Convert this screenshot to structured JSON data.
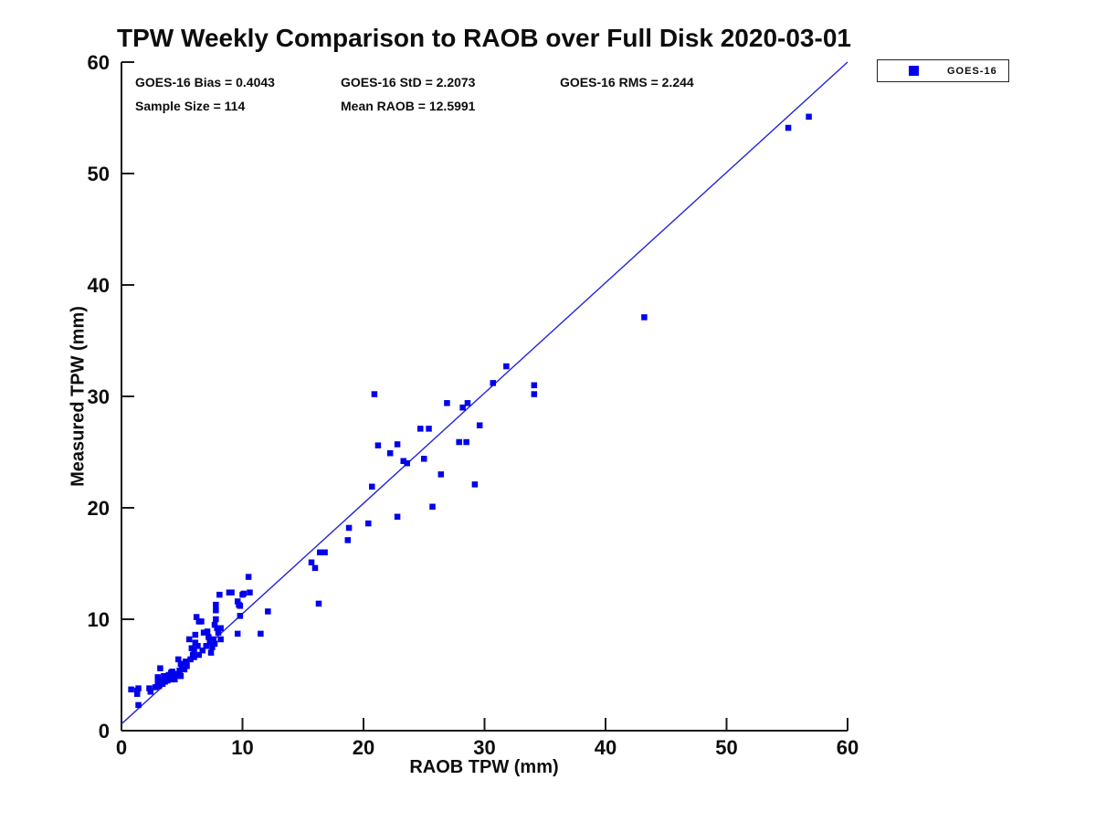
{
  "chart_data": {
    "type": "scatter",
    "title": "TPW Weekly Comparison to RAOB over Full Disk 2020-03-01",
    "xlabel": "RAOB TPW (mm)",
    "ylabel": "Measured TPW (mm)",
    "xlim": [
      0,
      60
    ],
    "ylim": [
      0,
      60
    ],
    "xticks": [
      0,
      10,
      20,
      30,
      40,
      50,
      60
    ],
    "yticks": [
      0,
      10,
      20,
      30,
      40,
      50,
      60
    ],
    "grid": false,
    "legend_position": "top-right-outside",
    "stats": {
      "bias": "GOES-16 Bias = 0.4043",
      "std": "GOES-16 StD = 2.2073",
      "rms": "GOES-16 RMS = 2.244",
      "sample": "Sample Size = 114",
      "mean": "Mean RAOB = 12.5991"
    },
    "fit_line": {
      "x1": 0,
      "y1": 0.6,
      "x2": 60,
      "y2": 60,
      "color": "#2424d9"
    },
    "series": [
      {
        "name": "GOES-16",
        "marker": "square",
        "color": "#0000ec",
        "points": [
          [
            0.8,
            3.7
          ],
          [
            1.3,
            3.6
          ],
          [
            1.4,
            3.8
          ],
          [
            1.3,
            3.3
          ],
          [
            1.4,
            2.3
          ],
          [
            2.3,
            3.8
          ],
          [
            2.4,
            3.5
          ],
          [
            2.8,
            3.9
          ],
          [
            3.0,
            4.3
          ],
          [
            3.0,
            4.8
          ],
          [
            3.1,
            4.0
          ],
          [
            3.2,
            5.6
          ],
          [
            3.3,
            4.4
          ],
          [
            3.4,
            4.2
          ],
          [
            3.5,
            4.9
          ],
          [
            3.6,
            4.4
          ],
          [
            3.7,
            4.7
          ],
          [
            3.8,
            4.5
          ],
          [
            3.9,
            5.0
          ],
          [
            4.0,
            4.6
          ],
          [
            4.1,
            5.2
          ],
          [
            4.2,
            5.3
          ],
          [
            4.3,
            4.8
          ],
          [
            4.4,
            4.6
          ],
          [
            4.5,
            5.0
          ],
          [
            4.6,
            5.1
          ],
          [
            4.7,
            6.4
          ],
          [
            4.8,
            5.4
          ],
          [
            4.9,
            4.9
          ],
          [
            4.9,
            6.0
          ],
          [
            5.0,
            5.6
          ],
          [
            5.2,
            5.5
          ],
          [
            5.3,
            6.2
          ],
          [
            5.4,
            5.8
          ],
          [
            5.6,
            8.2
          ],
          [
            5.7,
            6.4
          ],
          [
            5.8,
            7.4
          ],
          [
            5.9,
            6.8
          ],
          [
            6.0,
            7.3
          ],
          [
            6.0,
            6.6
          ],
          [
            6.1,
            7.9
          ],
          [
            6.1,
            8.6
          ],
          [
            6.2,
            10.2
          ],
          [
            6.3,
            7.6
          ],
          [
            6.4,
            6.8
          ],
          [
            6.4,
            9.8
          ],
          [
            6.6,
            9.8
          ],
          [
            6.7,
            7.2
          ],
          [
            6.8,
            8.8
          ],
          [
            7.0,
            7.6
          ],
          [
            7.1,
            8.9
          ],
          [
            7.2,
            8.4
          ],
          [
            7.3,
            8.0
          ],
          [
            7.4,
            7.0
          ],
          [
            7.5,
            7.5
          ],
          [
            7.6,
            8.2
          ],
          [
            7.7,
            9.5
          ],
          [
            7.7,
            7.8
          ],
          [
            7.8,
            11.3
          ],
          [
            7.8,
            10.8
          ],
          [
            7.8,
            10.0
          ],
          [
            7.9,
            9.2
          ],
          [
            8.0,
            8.8
          ],
          [
            8.2,
            9.2
          ],
          [
            8.2,
            8.2
          ],
          [
            8.1,
            12.2
          ],
          [
            8.9,
            12.4
          ],
          [
            9.1,
            12.4
          ],
          [
            9.6,
            11.6
          ],
          [
            9.7,
            11.3
          ],
          [
            9.8,
            11.2
          ],
          [
            9.8,
            10.3
          ],
          [
            9.6,
            8.7
          ],
          [
            10.0,
            12.2
          ],
          [
            10.1,
            12.3
          ],
          [
            10.5,
            13.8
          ],
          [
            10.6,
            12.4
          ],
          [
            11.5,
            8.7
          ],
          [
            12.1,
            10.7
          ],
          [
            15.7,
            15.1
          ],
          [
            16.0,
            14.6
          ],
          [
            16.4,
            16.0
          ],
          [
            16.8,
            16.0
          ],
          [
            16.3,
            11.4
          ],
          [
            18.7,
            17.1
          ],
          [
            18.8,
            18.2
          ],
          [
            20.4,
            18.6
          ],
          [
            20.7,
            21.9
          ],
          [
            20.9,
            30.2
          ],
          [
            21.2,
            25.6
          ],
          [
            22.2,
            24.9
          ],
          [
            22.8,
            25.7
          ],
          [
            22.8,
            19.2
          ],
          [
            23.3,
            24.2
          ],
          [
            23.6,
            24.0
          ],
          [
            25.0,
            24.4
          ],
          [
            24.7,
            27.1
          ],
          [
            25.4,
            27.1
          ],
          [
            25.7,
            20.1
          ],
          [
            26.4,
            23.0
          ],
          [
            26.9,
            29.4
          ],
          [
            27.9,
            25.9
          ],
          [
            28.5,
            25.9
          ],
          [
            28.2,
            29.0
          ],
          [
            28.6,
            29.4
          ],
          [
            29.2,
            22.1
          ],
          [
            29.6,
            27.4
          ],
          [
            30.7,
            31.2
          ],
          [
            31.8,
            32.7
          ],
          [
            34.1,
            31.0
          ],
          [
            34.1,
            30.2
          ],
          [
            43.2,
            37.1
          ],
          [
            55.1,
            54.1
          ],
          [
            56.8,
            55.1
          ]
        ]
      }
    ]
  }
}
